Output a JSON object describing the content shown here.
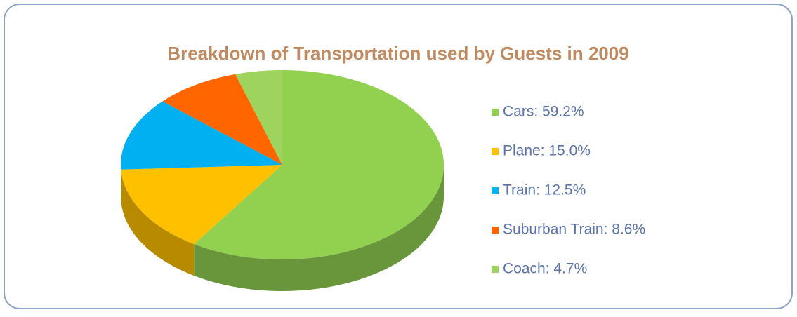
{
  "chart_data": {
    "type": "pie",
    "title": "Breakdown of Transportation used by Guests in 2009",
    "categories": [
      "Cars: 59.2%",
      "Plane: 15.0%",
      "Train: 12.5%",
      "Suburban Train: 8.6%",
      "Coach: 4.7%"
    ],
    "values": [
      59.2,
      15.0,
      12.5,
      8.6,
      4.7
    ],
    "colors": [
      "#92d050",
      "#ffc000",
      "#00b0f0",
      "#ff6600",
      "#9ed45e"
    ],
    "legend": "right"
  }
}
